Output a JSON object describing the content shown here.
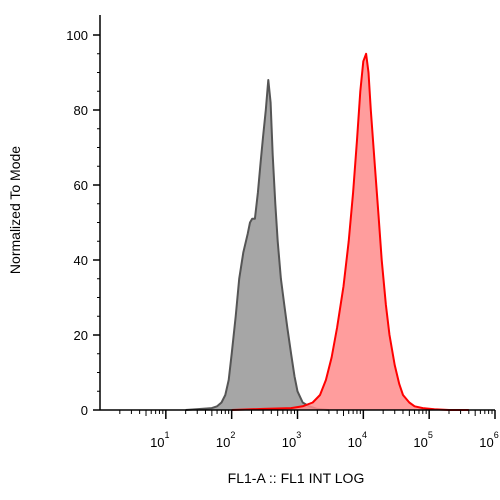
{
  "chart_data": {
    "type": "area",
    "xlabel": "FL1-A :: FL1 INT LOG",
    "ylabel": "Normalized To Mode",
    "x_scale": "log",
    "xlim": [
      1,
      1000000
    ],
    "ylim": [
      0,
      100
    ],
    "y_ticks": [
      0,
      20,
      40,
      60,
      80,
      100
    ],
    "x_ticks": [
      {
        "value": 10,
        "base": "10",
        "exp": "1"
      },
      {
        "value": 100,
        "base": "10",
        "exp": "2"
      },
      {
        "value": 1000,
        "base": "10",
        "exp": "3"
      },
      {
        "value": 10000,
        "base": "10",
        "exp": "4"
      },
      {
        "value": 100000,
        "base": "10",
        "exp": "5"
      },
      {
        "value": 1000000,
        "base": "10",
        "exp": "6"
      }
    ],
    "grid": false,
    "series": [
      {
        "color": "#555555",
        "fill": "#a6a6a6",
        "x": [
          20,
          50,
          60,
          70,
          80,
          90,
          100,
          115,
          130,
          150,
          175,
          190,
          205,
          225,
          250,
          275,
          300,
          330,
          360,
          390,
          420,
          460,
          500,
          560,
          630,
          700,
          800,
          900,
          1000,
          1200,
          1500,
          2000,
          3000
        ],
        "y": [
          0,
          0.5,
          1,
          2,
          4,
          8,
          15,
          25,
          35,
          42,
          47,
          50,
          51,
          51,
          58,
          66,
          73,
          80,
          88,
          82,
          68,
          55,
          45,
          35,
          28,
          22,
          15,
          9,
          5,
          2,
          1,
          0.3,
          0
        ]
      },
      {
        "color": "#ff0000",
        "fill": "#ff8c8c",
        "x": [
          100,
          300,
          800,
          1200,
          1700,
          2200,
          2700,
          3300,
          4000,
          5000,
          6000,
          7000,
          8000,
          9000,
          10000,
          11000,
          12000,
          13000,
          15000,
          17000,
          19000,
          22000,
          25000,
          30000,
          35000,
          40000,
          50000,
          60000,
          80000,
          120000,
          200000,
          400000
        ],
        "y": [
          0,
          0.3,
          0.5,
          1,
          2,
          4,
          8,
          14,
          22,
          33,
          45,
          58,
          72,
          85,
          93,
          95,
          90,
          80,
          65,
          52,
          40,
          28,
          20,
          12,
          7,
          4,
          2,
          1,
          0.5,
          0.2,
          0,
          0
        ]
      }
    ]
  }
}
